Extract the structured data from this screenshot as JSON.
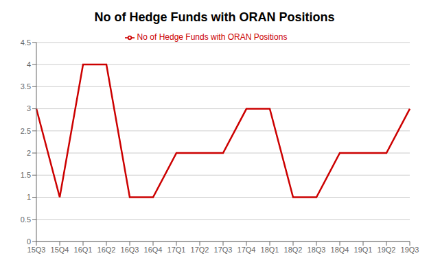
{
  "chart_data": {
    "type": "line",
    "title": "No of Hedge Funds with ORAN Positions",
    "categories": [
      "15Q3",
      "15Q4",
      "16Q1",
      "16Q2",
      "16Q3",
      "16Q4",
      "17Q1",
      "17Q2",
      "17Q3",
      "17Q4",
      "18Q1",
      "18Q2",
      "18Q3",
      "18Q4",
      "19Q1",
      "19Q2",
      "19Q3"
    ],
    "series": [
      {
        "name": "No of Hedge Funds with ORAN Positions",
        "color": "#cc0000",
        "values": [
          3,
          1,
          4,
          4,
          1,
          1,
          2,
          2,
          2,
          3,
          3,
          1,
          1,
          2,
          2,
          2,
          3
        ]
      }
    ],
    "ylim": [
      0,
      4.5
    ],
    "yticks": [
      0,
      0.5,
      1,
      1.5,
      2,
      2.5,
      3,
      3.5,
      4,
      4.5
    ],
    "grid": true,
    "legend": "top"
  }
}
